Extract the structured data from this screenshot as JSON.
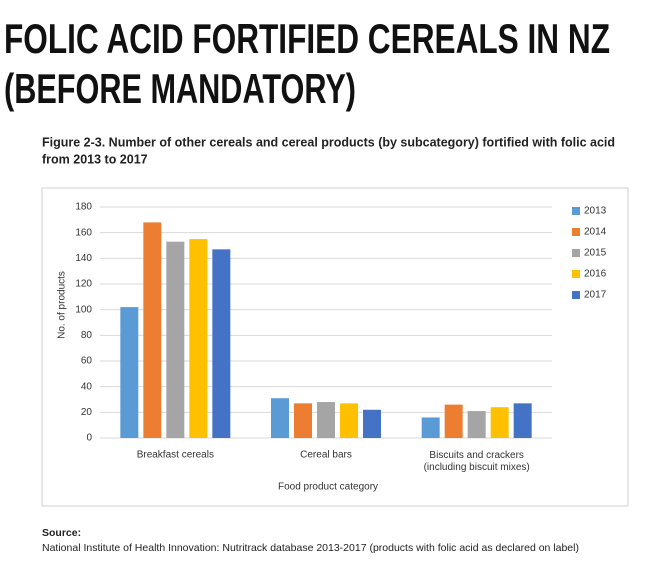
{
  "slide": {
    "title_lines": [
      "FOLIC ACID FORTIFIED CEREALS IN NZ",
      "(BEFORE MANDATORY)"
    ],
    "source_label": "Source:",
    "source": "National Institute of Health Innovation: Nutritrack database 2013-2017 (products with folic acid as declared on label)"
  },
  "chart_data": {
    "type": "bar",
    "title_lines": [
      "Figure 2-3. Number of other cereals and cereal products (by subcategory) fortified with folic acid",
      "from 2013 to 2017"
    ],
    "x_label": "Food product category",
    "y_label": "No. of products",
    "categories": [
      "Breakfast cereals",
      "Cereal bars",
      "Biscuits and crackers (including biscuit mixes)"
    ],
    "series": [
      {
        "name": "2013",
        "color": "#5b9bd5",
        "values": [
          102,
          31,
          16
        ]
      },
      {
        "name": "2014",
        "color": "#ed7d31",
        "values": [
          168,
          27,
          26
        ]
      },
      {
        "name": "2015",
        "color": "#a5a5a5",
        "values": [
          153,
          28,
          21
        ]
      },
      {
        "name": "2016",
        "color": "#ffc000",
        "values": [
          155,
          27,
          24
        ]
      },
      {
        "name": "2017",
        "color": "#4472c4",
        "values": [
          147,
          22,
          27
        ]
      }
    ],
    "ylim": [
      0,
      180
    ],
    "yticks": [
      0,
      20,
      40,
      60,
      80,
      100,
      120,
      140,
      160,
      180
    ],
    "grid": true,
    "legend": "right"
  }
}
